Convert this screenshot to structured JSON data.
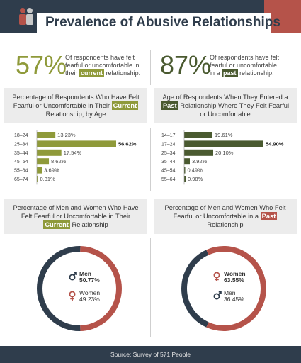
{
  "header": {
    "title": "Prevalence of Abusive Relationships"
  },
  "colors": {
    "navy": "#2f3d4c",
    "red": "#b5534a",
    "green": "#8f9a3a",
    "dark_green": "#4a5a30"
  },
  "stats": {
    "current": {
      "value": "57%",
      "line1": "Of respondents have felt",
      "line2": "fearful or uncomfortable in",
      "line3_pre": "their",
      "tag": "current",
      "line3_post": "relationship."
    },
    "past": {
      "value": "87%",
      "line1": "Of respondents have felt",
      "line2": "fearful or uncomfortable",
      "line3_pre": "in a",
      "tag": "past",
      "line3_post": "relationship."
    }
  },
  "bands": {
    "left_top": {
      "l1": "Percentage of Respondents Who Have Felt",
      "l2_pre": "Fearful or Uncomfortable in Their",
      "tag": "Current",
      "l3": "Relationship, by Age"
    },
    "right_top": {
      "l1": "Age of Respondents When They Entered a",
      "tag": "Past",
      "l2_post": "Relationship Where They Felt Fearful",
      "l3": "or Uncomfortable"
    },
    "left_bottom": {
      "l1": "Percentage of Men and Women Who Have",
      "l2": "Felt Fearful or Uncomfortable in Their",
      "tag": "Current",
      "l3_post": "Relationship"
    },
    "right_bottom": {
      "l1": "Percentage of Men and Women Who Felt",
      "l2_pre": "Fearful or Uncomfortable in a",
      "tag": "Past",
      "l3": "Relationship"
    }
  },
  "chart_data": [
    {
      "type": "bar",
      "orientation": "horizontal",
      "categories": [
        "18–24",
        "25–34",
        "35–44",
        "45–54",
        "55–64",
        "65–74"
      ],
      "values": [
        13.23,
        56.62,
        17.54,
        8.62,
        3.69,
        0.31
      ],
      "value_labels": [
        "13.23%",
        "56.62%",
        "17.54%",
        "8.62%",
        "3.69%",
        "0.31%"
      ]
    },
    {
      "type": "bar",
      "orientation": "horizontal",
      "categories": [
        "14–17",
        "17–24",
        "25–34",
        "35–44",
        "45–54",
        "55–64"
      ],
      "values": [
        19.61,
        54.9,
        20.1,
        3.92,
        0.49,
        0.98
      ],
      "value_labels": [
        "19.61%",
        "54.90%",
        "20.10%",
        "3.92%",
        "0.49%",
        "0.98%"
      ]
    },
    {
      "type": "pie",
      "style": "donut",
      "series": [
        {
          "name": "Men",
          "value": 50.77,
          "label": "50.77%"
        },
        {
          "name": "Women",
          "value": 49.23,
          "label": "49.23%"
        }
      ]
    },
    {
      "type": "pie",
      "style": "donut",
      "series": [
        {
          "name": "Women",
          "value": 63.55,
          "label": "63.55%"
        },
        {
          "name": "Men",
          "value": 36.45,
          "label": "36.45%"
        }
      ]
    }
  ],
  "footer": {
    "source": "Source: Survey of 571 People"
  }
}
